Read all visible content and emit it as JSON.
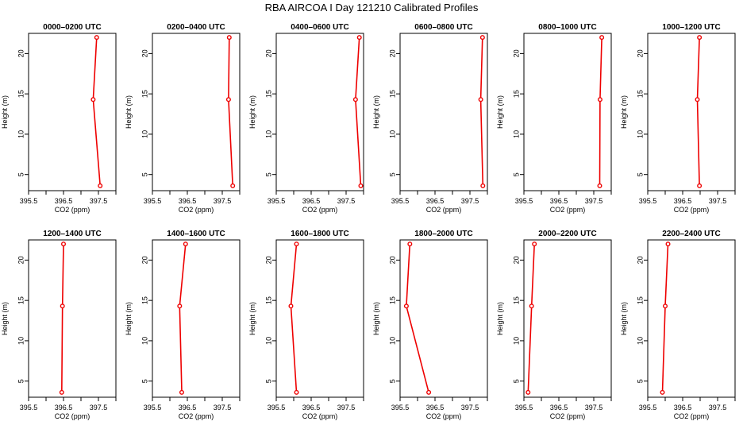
{
  "title": "RBA AIRCOA I  Day 121210  Calibrated Profiles",
  "chart_data": [
    {
      "type": "line",
      "title": "0000–0200 UTC",
      "xlabel": "CO2 (ppm)",
      "ylabel": "Height (m)",
      "xlim": [
        395.5,
        398.0
      ],
      "ylim": [
        3,
        22.5
      ],
      "xticks": [
        "395.5",
        "396.5",
        "397.5"
      ],
      "yticks": [
        "5",
        "10",
        "15",
        "20"
      ],
      "series": [
        {
          "x": [
            397.45,
            397.35,
            397.55
          ],
          "y": [
            22,
            14.3,
            3.6
          ]
        }
      ],
      "color": "#ee0000",
      "grid": false
    },
    {
      "type": "line",
      "title": "0200–0400 UTC",
      "xlabel": "CO2 (ppm)",
      "ylabel": "Height (m)",
      "xlim": [
        395.5,
        398.0
      ],
      "ylim": [
        3,
        22.5
      ],
      "xticks": [
        "395.5",
        "396.5",
        "397.5"
      ],
      "yticks": [
        "5",
        "10",
        "15",
        "20"
      ],
      "series": [
        {
          "x": [
            397.7,
            397.68,
            397.8
          ],
          "y": [
            22,
            14.3,
            3.6
          ]
        }
      ],
      "color": "#ee0000",
      "grid": false
    },
    {
      "type": "line",
      "title": "0400–0600 UTC",
      "xlabel": "CO2 (ppm)",
      "ylabel": "Height (m)",
      "xlim": [
        395.5,
        398.0
      ],
      "ylim": [
        3,
        22.5
      ],
      "xticks": [
        "395.5",
        "396.5",
        "397.5"
      ],
      "yticks": [
        "5",
        "10",
        "15",
        "20"
      ],
      "series": [
        {
          "x": [
            397.88,
            397.77,
            397.92
          ],
          "y": [
            22,
            14.3,
            3.6
          ]
        }
      ],
      "color": "#ee0000",
      "grid": false
    },
    {
      "type": "line",
      "title": "0600–0800 UTC",
      "xlabel": "CO2 (ppm)",
      "ylabel": "Height (m)",
      "xlim": [
        395.5,
        398.0
      ],
      "ylim": [
        3,
        22.5
      ],
      "xticks": [
        "395.5",
        "396.5",
        "397.5"
      ],
      "yticks": [
        "5",
        "10",
        "15",
        "20"
      ],
      "series": [
        {
          "x": [
            397.86,
            397.81,
            397.87
          ],
          "y": [
            22,
            14.3,
            3.6
          ]
        }
      ],
      "color": "#ee0000",
      "grid": false
    },
    {
      "type": "line",
      "title": "0800–1000 UTC",
      "xlabel": "CO2 (ppm)",
      "ylabel": "Height (m)",
      "xlim": [
        395.5,
        398.0
      ],
      "ylim": [
        3,
        22.5
      ],
      "xticks": [
        "395.5",
        "396.5",
        "397.5"
      ],
      "yticks": [
        "5",
        "10",
        "15",
        "20"
      ],
      "series": [
        {
          "x": [
            397.73,
            397.68,
            397.67
          ],
          "y": [
            22,
            14.3,
            3.6
          ]
        }
      ],
      "color": "#ee0000",
      "grid": false
    },
    {
      "type": "line",
      "title": "1000–1200 UTC",
      "xlabel": "CO2 (ppm)",
      "ylabel": "Height (m)",
      "xlim": [
        395.5,
        398.0
      ],
      "ylim": [
        3,
        22.5
      ],
      "xticks": [
        "395.5",
        "396.5",
        "397.5"
      ],
      "yticks": [
        "5",
        "10",
        "15",
        "20"
      ],
      "series": [
        {
          "x": [
            396.98,
            396.92,
            396.98
          ],
          "y": [
            22,
            14.3,
            3.6
          ]
        }
      ],
      "color": "#ee0000",
      "grid": false
    },
    {
      "type": "line",
      "title": "1200–1400 UTC",
      "xlabel": "CO2 (ppm)",
      "ylabel": "Height (m)",
      "xlim": [
        395.5,
        398.0
      ],
      "ylim": [
        3,
        22.5
      ],
      "xticks": [
        "395.5",
        "396.5",
        "397.5"
      ],
      "yticks": [
        "5",
        "10",
        "15",
        "20"
      ],
      "series": [
        {
          "x": [
            396.5,
            396.47,
            396.45
          ],
          "y": [
            22,
            14.3,
            3.6
          ]
        }
      ],
      "color": "#ee0000",
      "grid": false
    },
    {
      "type": "line",
      "title": "1400–1600 UTC",
      "xlabel": "CO2 (ppm)",
      "ylabel": "Height (m)",
      "xlim": [
        395.5,
        398.0
      ],
      "ylim": [
        3,
        22.5
      ],
      "xticks": [
        "395.5",
        "396.5",
        "397.5"
      ],
      "yticks": [
        "5",
        "10",
        "15",
        "20"
      ],
      "series": [
        {
          "x": [
            396.45,
            396.28,
            396.34
          ],
          "y": [
            22,
            14.3,
            3.6
          ]
        }
      ],
      "color": "#ee0000",
      "grid": false
    },
    {
      "type": "line",
      "title": "1600–1800 UTC",
      "xlabel": "CO2 (ppm)",
      "ylabel": "Height (m)",
      "xlim": [
        395.5,
        398.0
      ],
      "ylim": [
        3,
        22.5
      ],
      "xticks": [
        "395.5",
        "396.5",
        "397.5"
      ],
      "yticks": [
        "5",
        "10",
        "15",
        "20"
      ],
      "series": [
        {
          "x": [
            396.08,
            395.92,
            396.08
          ],
          "y": [
            22,
            14.3,
            3.6
          ]
        }
      ],
      "color": "#ee0000",
      "grid": false
    },
    {
      "type": "line",
      "title": "1800–2000 UTC",
      "xlabel": "CO2 (ppm)",
      "ylabel": "Height (m)",
      "xlim": [
        395.5,
        398.0
      ],
      "ylim": [
        3,
        22.5
      ],
      "xticks": [
        "395.5",
        "396.5",
        "397.5"
      ],
      "yticks": [
        "5",
        "10",
        "15",
        "20"
      ],
      "series": [
        {
          "x": [
            395.78,
            395.68,
            396.32
          ],
          "y": [
            22,
            14.3,
            3.6
          ]
        }
      ],
      "color": "#ee0000",
      "grid": false
    },
    {
      "type": "line",
      "title": "2000–2200 UTC",
      "xlabel": "CO2 (ppm)",
      "ylabel": "Height (m)",
      "xlim": [
        395.5,
        398.0
      ],
      "ylim": [
        3,
        22.5
      ],
      "xticks": [
        "395.5",
        "396.5",
        "397.5"
      ],
      "yticks": [
        "5",
        "10",
        "15",
        "20"
      ],
      "series": [
        {
          "x": [
            395.8,
            395.72,
            395.62
          ],
          "y": [
            22,
            14.3,
            3.6
          ]
        }
      ],
      "color": "#ee0000",
      "grid": false
    },
    {
      "type": "line",
      "title": "2200–2400 UTC",
      "xlabel": "CO2 (ppm)",
      "ylabel": "Height (m)",
      "xlim": [
        395.5,
        398.0
      ],
      "ylim": [
        3,
        22.5
      ],
      "xticks": [
        "395.5",
        "396.5",
        "397.5"
      ],
      "yticks": [
        "5",
        "10",
        "15",
        "20"
      ],
      "series": [
        {
          "x": [
            396.08,
            396.0,
            395.92
          ],
          "y": [
            22,
            14.3,
            3.6
          ]
        }
      ],
      "color": "#ee0000",
      "grid": false
    }
  ]
}
